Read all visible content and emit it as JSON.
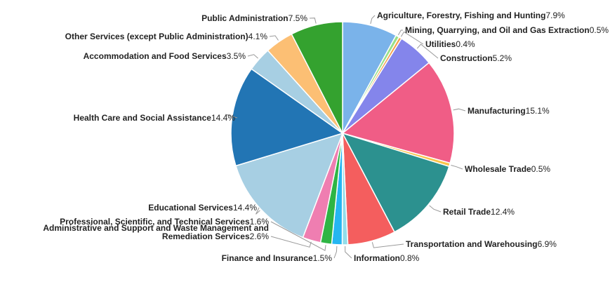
{
  "chart_data": {
    "type": "pie",
    "title": "",
    "unit": "%",
    "slices": [
      {
        "name": "Agriculture, Forestry, Fishing and Hunting",
        "value": 7.9,
        "pct": "7.9%",
        "color": "#7ab3ea"
      },
      {
        "name": "Mining, Quarrying, and Oil and Gas Extraction",
        "value": 0.5,
        "pct": "0.5%",
        "color": "#98e08a"
      },
      {
        "name": "Utilities",
        "value": 0.4,
        "pct": "0.4%",
        "color": "#f5a04a"
      },
      {
        "name": "Construction",
        "value": 5.2,
        "pct": "5.2%",
        "color": "#8485eb"
      },
      {
        "name": "Manufacturing",
        "value": 15.1,
        "pct": "15.1%",
        "color": "#f05d86"
      },
      {
        "name": "Wholesale Trade",
        "value": 0.5,
        "pct": "0.5%",
        "color": "#f9c34a"
      },
      {
        "name": "Retail Trade",
        "value": 12.4,
        "pct": "12.4%",
        "color": "#2c918f"
      },
      {
        "name": "Transportation and Warehousing",
        "value": 6.9,
        "pct": "6.9%",
        "color": "#f45e5e"
      },
      {
        "name": "Information",
        "value": 0.8,
        "pct": "0.8%",
        "color": "#92dde9"
      },
      {
        "name": "Finance and Insurance",
        "value": 1.5,
        "pct": "1.5%",
        "color": "#25b6f1"
      },
      {
        "name": "Professional, Scientific, and Technical Services",
        "value": 1.6,
        "pct": "1.6%",
        "color": "#2eb544"
      },
      {
        "name": "Administrative and Support and Waste Management and Remediation Services",
        "value": 2.6,
        "pct": "2.6%",
        "color": "#ef7eb1"
      },
      {
        "name": "Educational Services",
        "value": 14.4,
        "pct": "14.4%",
        "color": "#a7cfe3"
      },
      {
        "name": "Health Care and Social Assistance",
        "value": 14.4,
        "pct": "14.4%",
        "color": "#2275b4"
      },
      {
        "name": "Accommodation and Food Services",
        "value": 3.5,
        "pct": "3.5%",
        "color": "#a7cfe3"
      },
      {
        "name": "Other Services (except Public Administration)",
        "value": 4.1,
        "pct": "4.1%",
        "color": "#fcbf74"
      },
      {
        "name": "Public Administration",
        "value": 7.5,
        "pct": "7.5%",
        "color": "#34a22f"
      }
    ]
  }
}
